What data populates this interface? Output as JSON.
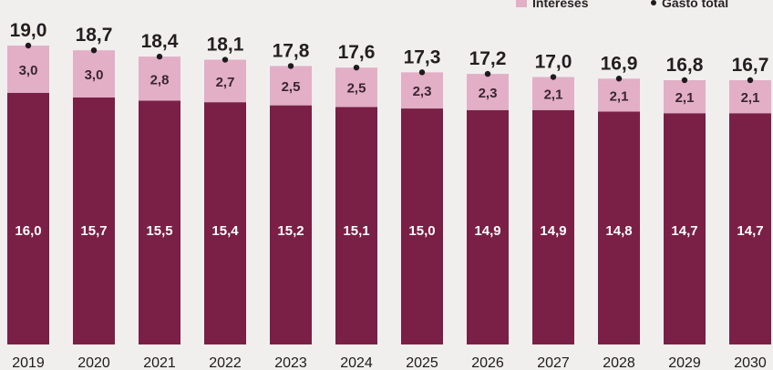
{
  "chart_data": {
    "type": "bar",
    "stacked": true,
    "categories": [
      "2019",
      "2020",
      "2021",
      "2022",
      "2023",
      "2024",
      "2025",
      "2026",
      "2027",
      "2028",
      "2029",
      "2030"
    ],
    "series": [
      {
        "name": "",
        "values": [
          16.0,
          15.7,
          15.5,
          15.4,
          15.2,
          15.1,
          15.0,
          14.9,
          14.9,
          14.8,
          14.7,
          14.7
        ],
        "labels": [
          "16,0",
          "15,7",
          "15,5",
          "15,4",
          "15,2",
          "15,1",
          "15,0",
          "14,9",
          "14,9",
          "14,8",
          "14,7",
          "14,7"
        ]
      },
      {
        "name": "Intereses",
        "values": [
          3.0,
          3.0,
          2.8,
          2.7,
          2.5,
          2.5,
          2.3,
          2.3,
          2.1,
          2.1,
          2.1,
          2.1
        ],
        "labels": [
          "3,0",
          "3,0",
          "2,8",
          "2,7",
          "2,5",
          "2,5",
          "2,3",
          "2,3",
          "2,1",
          "2,1",
          "2,1",
          "2,1"
        ]
      }
    ],
    "totals": {
      "name": "Gasto total",
      "values": [
        19.0,
        18.7,
        18.4,
        18.1,
        17.8,
        17.6,
        17.3,
        17.2,
        17.0,
        16.9,
        16.8,
        16.7
      ],
      "labels": [
        "19,0",
        "18,7",
        "18,4",
        "18,1",
        "17,8",
        "17,6",
        "17,3",
        "17,2",
        "17,0",
        "16,9",
        "16,8",
        "16,7"
      ]
    },
    "ylim": [
      0,
      19.0
    ],
    "grid": false,
    "legend_position": "top-right",
    "colors": {
      "base": "#7a1f45",
      "intereses": "#e2afc7",
      "dot": "#1f1a1c",
      "background": "#f1efee"
    }
  }
}
